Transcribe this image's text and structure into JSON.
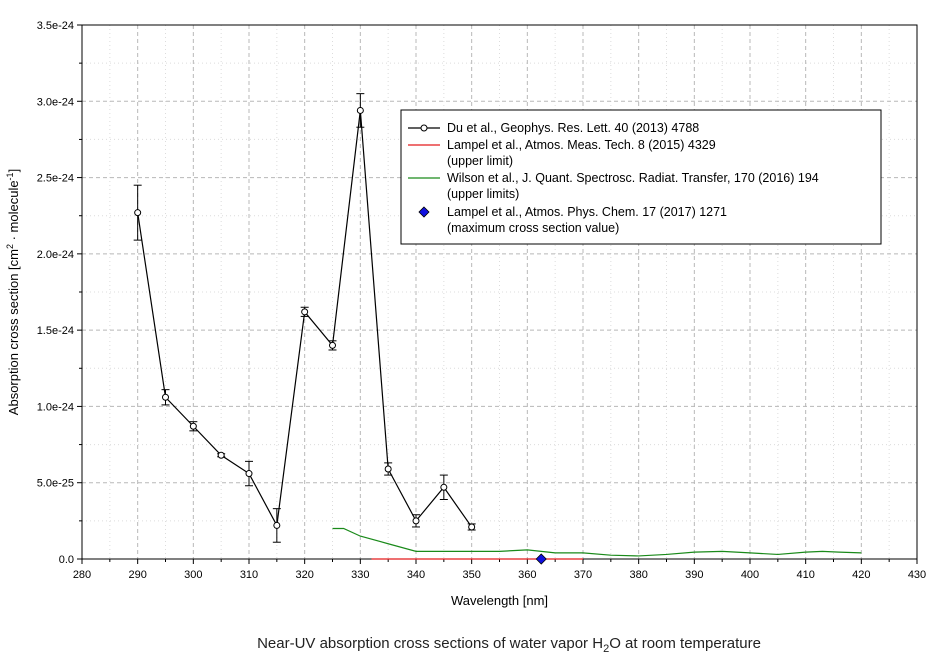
{
  "chart_data": {
    "type": "line",
    "xlabel": "Wavelength [nm]",
    "ylabel_parts": [
      "Absorption cross section [cm",
      "2",
      " · molecule",
      "-1",
      "]"
    ],
    "caption_parts": [
      "Near-UV absorption cross sections of water vapor H",
      "2",
      "O at room temperature"
    ],
    "xlim": [
      280,
      430
    ],
    "ylim": [
      0,
      3.5e-24
    ],
    "xticks": [
      280,
      290,
      300,
      310,
      320,
      330,
      340,
      350,
      360,
      370,
      380,
      390,
      400,
      410,
      420,
      430
    ],
    "yticks": [
      {
        "value": 0,
        "label": "0.0"
      },
      {
        "value": 5e-25,
        "label": "5.0e-25"
      },
      {
        "value": 1e-24,
        "label": "1.0e-24"
      },
      {
        "value": 1.5e-24,
        "label": "1.5e-24"
      },
      {
        "value": 2e-24,
        "label": "2.0e-24"
      },
      {
        "value": 2.5e-24,
        "label": "2.5e-24"
      },
      {
        "value": 3e-24,
        "label": "3.0e-24"
      },
      {
        "value": 3.5e-24,
        "label": "3.5e-24"
      }
    ],
    "grid": true,
    "legend_position": "top-right",
    "series": [
      {
        "name": "Du et al., Geophys. Res. Lett. 40 (2013) 4788",
        "name_line2": "",
        "style": "line-open-circles-errorbars",
        "color": "#000000",
        "x": [
          290,
          295,
          300,
          305,
          310,
          315,
          320,
          325,
          330,
          335,
          340,
          345,
          350
        ],
        "y": [
          2.27e-24,
          1.06e-24,
          8.7e-25,
          6.8e-25,
          5.6e-25,
          2.2e-25,
          1.62e-24,
          1.4e-24,
          2.94e-24,
          5.9e-25,
          2.5e-25,
          4.7e-25,
          2.1e-25
        ],
        "err": [
          1.8e-25,
          5e-26,
          3e-26,
          1e-26,
          8e-26,
          1.1e-25,
          3e-26,
          3e-26,
          1.1e-25,
          4e-26,
          4e-26,
          8e-26,
          2e-26
        ]
      },
      {
        "name": "Lampel et al., Atmos. Meas. Tech. 8 (2015) 4329",
        "name_line2": "(upper limit)",
        "style": "line",
        "color": "#e31a1c",
        "x": [
          332,
          370
        ],
        "y": [
          0.0,
          0.0
        ]
      },
      {
        "name": "Wilson et al., J. Quant. Spectrosc. Radiat. Transfer, 170 (2016) 194",
        "name_line2": "(upper limits)",
        "style": "line",
        "color": "#1a8a1a",
        "x": [
          325,
          327,
          330,
          335,
          340,
          345,
          350,
          355,
          360,
          365,
          370,
          375,
          380,
          385,
          390,
          395,
          400,
          405,
          410,
          413,
          416,
          420
        ],
        "y": [
          2e-25,
          2e-25,
          1.5e-25,
          1e-25,
          5e-26,
          5e-26,
          5e-26,
          5e-26,
          6e-26,
          4e-26,
          4e-26,
          2.5e-26,
          2e-26,
          3e-26,
          4.5e-26,
          5e-26,
          4e-26,
          3e-26,
          4.5e-26,
          5e-26,
          4.5e-26,
          4e-26
        ]
      },
      {
        "name": "Lampel et al., Atmos. Phys. Chem. 17 (2017) 1271",
        "name_line2": "(maximum cross section value)",
        "style": "marker-diamond",
        "color": "#1010e0",
        "x": [
          362.5
        ],
        "y": [
          0.0
        ]
      }
    ]
  }
}
